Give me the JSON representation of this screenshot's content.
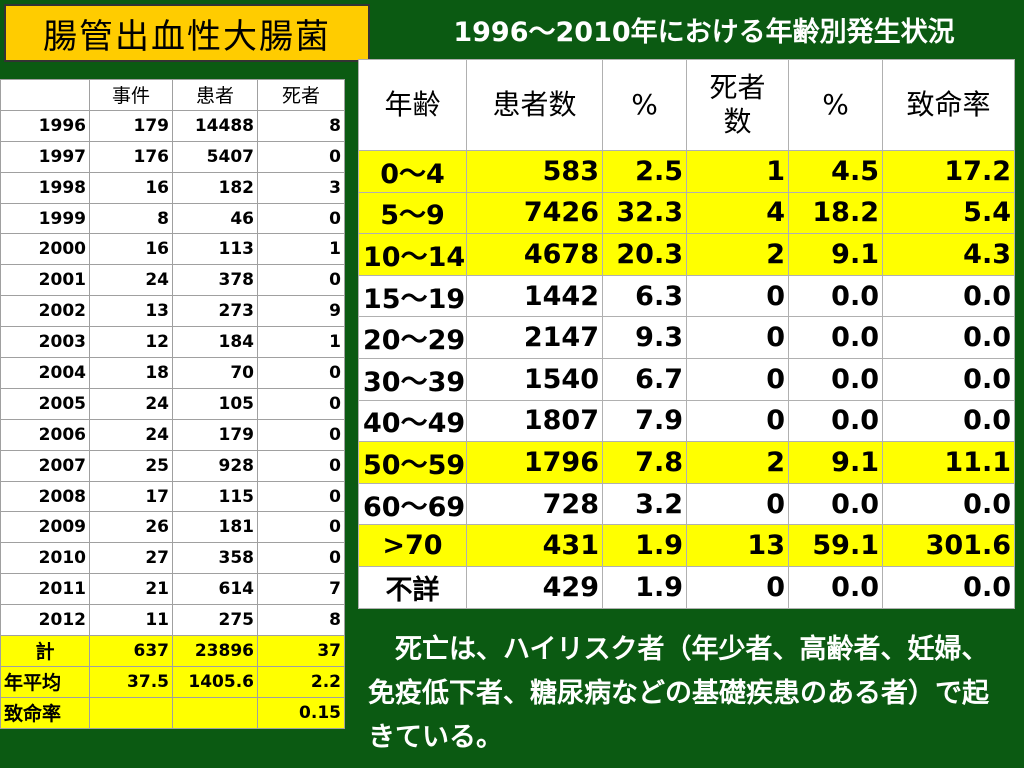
{
  "title": "腸管出血性大腸菌",
  "subtitle": "1996～2010年における年齢別発生状況",
  "left_table": {
    "headers": [
      "",
      "事件",
      "患者",
      "死者"
    ],
    "rows": [
      [
        "1996",
        "179",
        "14488",
        "8"
      ],
      [
        "1997",
        "176",
        "5407",
        "0"
      ],
      [
        "1998",
        "16",
        "182",
        "3"
      ],
      [
        "1999",
        "8",
        "46",
        "0"
      ],
      [
        "2000",
        "16",
        "113",
        "1"
      ],
      [
        "2001",
        "24",
        "378",
        "0"
      ],
      [
        "2002",
        "13",
        "273",
        "9"
      ],
      [
        "2003",
        "12",
        "184",
        "1"
      ],
      [
        "2004",
        "18",
        "70",
        "0"
      ],
      [
        "2005",
        "24",
        "105",
        "0"
      ],
      [
        "2006",
        "24",
        "179",
        "0"
      ],
      [
        "2007",
        "25",
        "928",
        "0"
      ],
      [
        "2008",
        "17",
        "115",
        "0"
      ],
      [
        "2009",
        "26",
        "181",
        "0"
      ],
      [
        "2010",
        "27",
        "358",
        "0"
      ],
      [
        "2011",
        "21",
        "614",
        "7"
      ],
      [
        "2012",
        "11",
        "275",
        "8"
      ]
    ],
    "total": [
      "計",
      "637",
      "23896",
      "37"
    ],
    "average": [
      "年平均",
      "37.5",
      "1405.6",
      "2.2"
    ],
    "fatality": [
      "致命率",
      "",
      "",
      "0.15"
    ]
  },
  "right_table": {
    "headers": [
      "年齢",
      "患者数",
      "%",
      "死者数",
      "%",
      "致命率"
    ],
    "rows": [
      {
        "cells": [
          "0～4",
          "583",
          "2.5",
          "1",
          "4.5",
          "17.2"
        ],
        "highlight": true,
        "center": true
      },
      {
        "cells": [
          "5～9",
          "7426",
          "32.3",
          "4",
          "18.2",
          "5.4"
        ],
        "highlight": true,
        "center": true
      },
      {
        "cells": [
          "10～14",
          "4678",
          "20.3",
          "2",
          "9.1",
          "4.3"
        ],
        "highlight": true,
        "center": false
      },
      {
        "cells": [
          "15～19",
          "1442",
          "6.3",
          "0",
          "0.0",
          "0.0"
        ],
        "highlight": false,
        "center": false
      },
      {
        "cells": [
          "20～29",
          "2147",
          "9.3",
          "0",
          "0.0",
          "0.0"
        ],
        "highlight": false,
        "center": false
      },
      {
        "cells": [
          "30～39",
          "1540",
          "6.7",
          "0",
          "0.0",
          "0.0"
        ],
        "highlight": false,
        "center": false
      },
      {
        "cells": [
          "40～49",
          "1807",
          "7.9",
          "0",
          "0.0",
          "0.0"
        ],
        "highlight": false,
        "center": false
      },
      {
        "cells": [
          "50～59",
          "1796",
          "7.8",
          "2",
          "9.1",
          "11.1"
        ],
        "highlight": true,
        "center": false
      },
      {
        "cells": [
          "60～69",
          "728",
          "3.2",
          "0",
          "0.0",
          "0.0"
        ],
        "highlight": false,
        "center": false
      },
      {
        "cells": [
          ">70",
          "431",
          "1.9",
          "13",
          "59.1",
          "301.6"
        ],
        "highlight": true,
        "center": true
      },
      {
        "cells": [
          "不詳",
          "429",
          "1.9",
          "0",
          "0.0",
          "0.0"
        ],
        "highlight": false,
        "center": true
      }
    ]
  },
  "note": "　死亡は、ハイリスク者（年少者、高齢者、妊婦、免疫低下者、糖尿病などの基礎疾患のある者）で起きている。",
  "colors": {
    "background": "#0b5a12",
    "title_box": "#ffcc00",
    "highlight": "#ffff00"
  }
}
